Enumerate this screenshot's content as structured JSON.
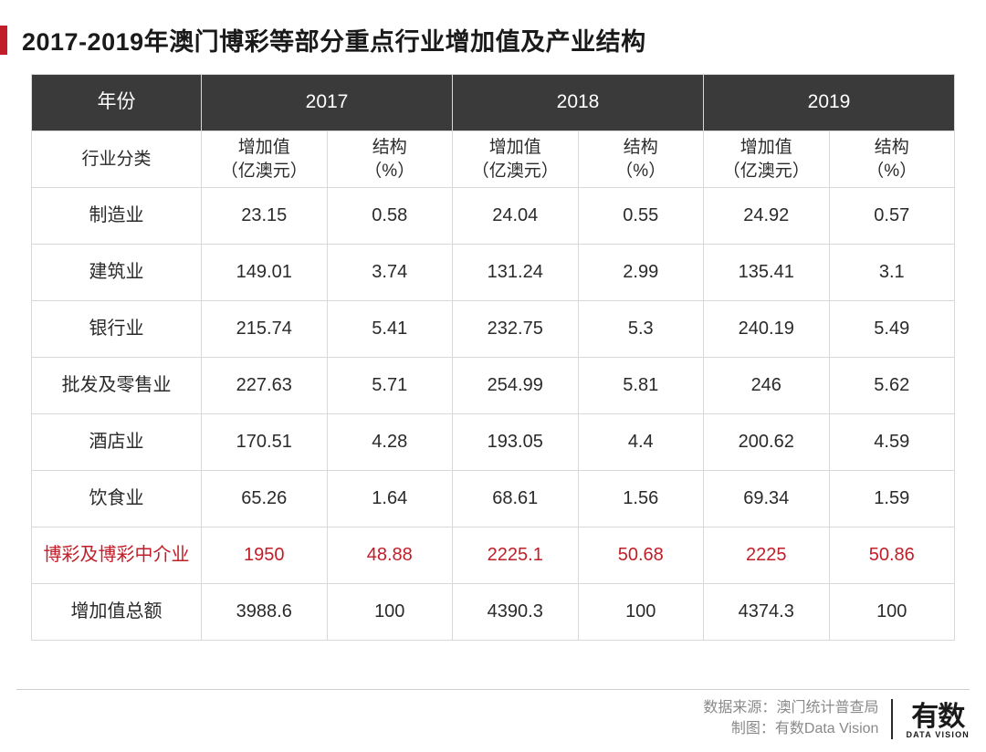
{
  "title": "2017-2019年澳门博彩等部分重点行业增加值及产业结构",
  "colors": {
    "accent": "#c01e28",
    "header_bg": "#3a3a3a",
    "header_text": "#ffffff",
    "border": "#d8d8d8",
    "text": "#2a2a2a",
    "muted": "#8a8a8a"
  },
  "table": {
    "type": "table",
    "years": [
      "2017",
      "2018",
      "2019"
    ],
    "year_label": "年份",
    "row_label_header": "行业分类",
    "sub_columns": [
      {
        "label_l1": "增加值",
        "label_l2": "（亿澳元）"
      },
      {
        "label_l1": "结构",
        "label_l2": "（%）"
      }
    ],
    "rows": [
      {
        "label": "制造业",
        "v": [
          "23.15",
          "0.58",
          "24.04",
          "0.55",
          "24.92",
          "0.57"
        ],
        "highlight": false
      },
      {
        "label": "建筑业",
        "v": [
          "149.01",
          "3.74",
          "131.24",
          "2.99",
          "135.41",
          "3.1"
        ],
        "highlight": false
      },
      {
        "label": "银行业",
        "v": [
          "215.74",
          "5.41",
          "232.75",
          "5.3",
          "240.19",
          "5.49"
        ],
        "highlight": false
      },
      {
        "label": "批发及零售业",
        "v": [
          "227.63",
          "5.71",
          "254.99",
          "5.81",
          "246",
          "5.62"
        ],
        "highlight": false
      },
      {
        "label": "酒店业",
        "v": [
          "170.51",
          "4.28",
          "193.05",
          "4.4",
          "200.62",
          "4.59"
        ],
        "highlight": false
      },
      {
        "label": "饮食业",
        "v": [
          "65.26",
          "1.64",
          "68.61",
          "1.56",
          "69.34",
          "1.59"
        ],
        "highlight": false
      },
      {
        "label": "博彩及博彩中介业",
        "v": [
          "1950",
          "48.88",
          "2225.1",
          "50.68",
          "2225",
          "50.86"
        ],
        "highlight": true
      },
      {
        "label": "增加值总额",
        "v": [
          "3988.6",
          "100",
          "4390.3",
          "100",
          "4374.3",
          "100"
        ],
        "highlight": false
      }
    ]
  },
  "footer": {
    "source_label": "数据来源：",
    "source_value": "澳门统计普查局",
    "chart_label": "制图：",
    "chart_value": "有数Data Vision",
    "logo_main": "有数",
    "logo_sub": "DATA VISION"
  }
}
